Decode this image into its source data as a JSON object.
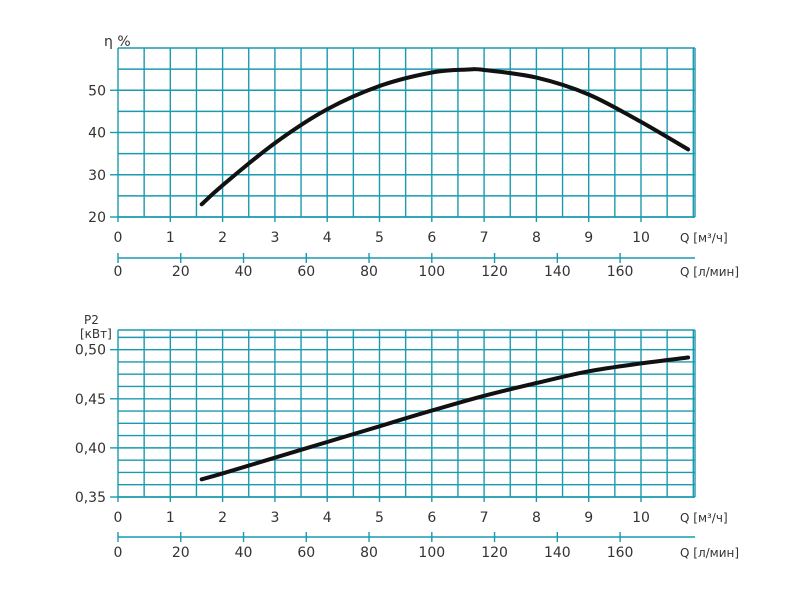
{
  "colors": {
    "grid": "#1a9ab0",
    "curve": "#111111",
    "axis": "#1a9ab0",
    "text": "#333333"
  },
  "chart_data": [
    {
      "type": "line",
      "ylabel": "η %",
      "ylabel_lines": [
        "η %"
      ],
      "xlabel": "Q [м³/ч]",
      "xlabel2": "Q [л/мин]",
      "xlim": [
        0,
        11
      ],
      "ylim": [
        20,
        60
      ],
      "x_ticks": [
        "0",
        "1",
        "2",
        "3",
        "4",
        "5",
        "6",
        "7",
        "8",
        "9",
        "10"
      ],
      "x2_ticks": [
        "0",
        "20",
        "40",
        "60",
        "80",
        "100",
        "120",
        "140",
        "160"
      ],
      "y_ticks": [
        "20",
        "30",
        "40",
        "50"
      ],
      "y_tick_values": [
        20,
        30,
        40,
        50
      ],
      "grid": true,
      "series": [
        {
          "x": [
            1.6,
            2.0,
            3.0,
            4.0,
            5.0,
            6.0,
            6.7,
            7.0,
            8.0,
            9.0,
            10.0,
            10.9
          ],
          "y": [
            23.0,
            27.5,
            37.5,
            45.5,
            51.0,
            54.2,
            54.9,
            54.8,
            53.0,
            49.0,
            42.5,
            36.0
          ]
        }
      ]
    },
    {
      "type": "line",
      "ylabel": "P2 [кВт]",
      "ylabel_lines": [
        "P2",
        "[кВт]"
      ],
      "xlabel": "Q [м³/ч]",
      "xlabel2": "Q [л/мин]",
      "xlim": [
        0,
        11
      ],
      "ylim": [
        0.35,
        0.52
      ],
      "x_ticks": [
        "0",
        "1",
        "2",
        "3",
        "4",
        "5",
        "6",
        "7",
        "8",
        "9",
        "10"
      ],
      "x2_ticks": [
        "0",
        "20",
        "40",
        "60",
        "80",
        "100",
        "120",
        "140",
        "160"
      ],
      "y_ticks": [
        "0,35",
        "0,40",
        "0,45",
        "0,50"
      ],
      "y_tick_values": [
        0.35,
        0.4,
        0.45,
        0.5
      ],
      "grid": true,
      "series": [
        {
          "x": [
            1.6,
            2.0,
            3.0,
            4.0,
            5.0,
            6.0,
            7.0,
            8.0,
            9.0,
            10.0,
            10.9
          ],
          "y": [
            0.368,
            0.374,
            0.39,
            0.406,
            0.422,
            0.438,
            0.453,
            0.466,
            0.478,
            0.486,
            0.492
          ]
        }
      ]
    }
  ]
}
